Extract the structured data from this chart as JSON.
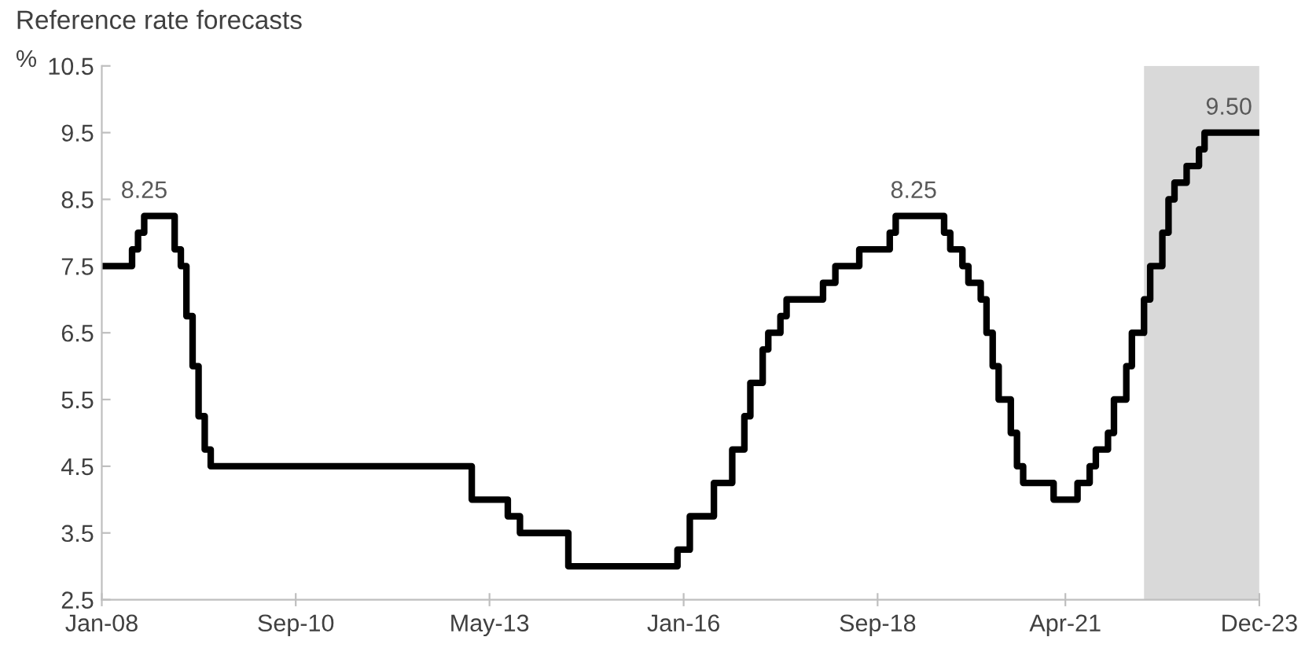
{
  "chart_data": {
    "type": "step",
    "title": "Reference rate forecasts",
    "ylabel": "%",
    "x": [
      "2008-01",
      "2008-06",
      "2008-07",
      "2008-08",
      "2009-01",
      "2009-02",
      "2009-03",
      "2009-04",
      "2009-05",
      "2009-06",
      "2009-07",
      "2013-02",
      "2013-08",
      "2013-10",
      "2014-06",
      "2015-12",
      "2016-02",
      "2016-06",
      "2016-09",
      "2016-11",
      "2016-12",
      "2017-02",
      "2017-03",
      "2017-05",
      "2017-06",
      "2017-12",
      "2018-02",
      "2018-06",
      "2018-11",
      "2018-12",
      "2019-08",
      "2019-09",
      "2019-11",
      "2019-12",
      "2020-02",
      "2020-03",
      "2020-04",
      "2020-05",
      "2020-07",
      "2020-08",
      "2020-09",
      "2021-02",
      "2021-06",
      "2021-08",
      "2021-09",
      "2021-11",
      "2021-12",
      "2022-02",
      "2022-03",
      "2022-05",
      "2022-06",
      "2022-08",
      "2022-09",
      "2022-10",
      "2022-12",
      "2023-02",
      "2023-03",
      "2023-12"
    ],
    "series": [
      {
        "color": "#000000",
        "values": [
          7.5,
          7.75,
          8.0,
          8.25,
          7.75,
          7.5,
          6.75,
          6.0,
          5.25,
          4.75,
          4.5,
          4.0,
          3.75,
          3.5,
          3.0,
          3.25,
          3.75,
          4.25,
          4.75,
          5.25,
          5.75,
          6.25,
          6.5,
          6.75,
          7.0,
          7.25,
          7.5,
          7.75,
          8.0,
          8.25,
          8.0,
          7.75,
          7.5,
          7.25,
          7.0,
          6.5,
          6.0,
          5.5,
          5.0,
          4.5,
          4.25,
          4.0,
          4.25,
          4.5,
          4.75,
          5.0,
          5.5,
          6.0,
          6.5,
          7.0,
          7.5,
          8.0,
          8.5,
          8.75,
          9.0,
          9.25,
          9.5,
          9.5
        ]
      }
    ],
    "xlim": [
      "2008-01",
      "2023-12"
    ],
    "xticks": [
      {
        "value": "2008-01",
        "label": "Jan-08"
      },
      {
        "value": "2010-09",
        "label": "Sep-10"
      },
      {
        "value": "2013-05",
        "label": "May-13"
      },
      {
        "value": "2016-01",
        "label": "Jan-16"
      },
      {
        "value": "2018-09",
        "label": "Sep-18"
      },
      {
        "value": "2021-04",
        "label": "Apr-21"
      },
      {
        "value": "2023-12",
        "label": "Dec-23"
      }
    ],
    "ylim": [
      2.5,
      10.5
    ],
    "yticks": [
      2.5,
      3.5,
      4.5,
      5.5,
      6.5,
      7.5,
      8.5,
      9.5,
      10.5
    ],
    "grid": false,
    "line_style": "solid",
    "marker": "none",
    "bands": [
      {
        "axis": "x",
        "from": "2022-05",
        "to": "2023-12",
        "color": "#d9d9d9"
      }
    ],
    "annotations": [
      {
        "text": "8.25",
        "x": "2008-08",
        "y": 8.25
      },
      {
        "text": "8.25",
        "x": "2019-03",
        "y": 8.25
      },
      {
        "text": "9.50",
        "x": "2023-07",
        "y": 9.5
      }
    ]
  }
}
